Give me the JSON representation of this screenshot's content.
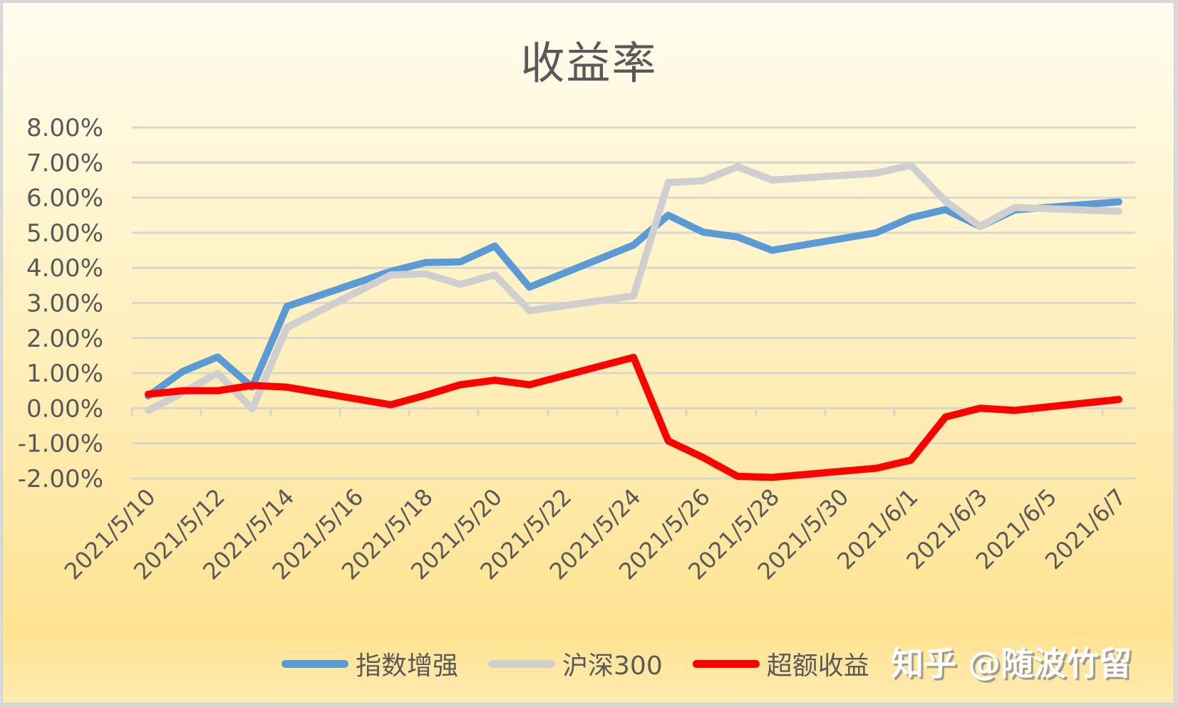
{
  "title": "收益率",
  "watermark": "知乎 @随波竹留",
  "legend": [
    {
      "label": "指数增强",
      "color": "#5b9bd5"
    },
    {
      "label": "沪深300",
      "color": "#cfcfcf"
    },
    {
      "label": "超额收益",
      "color": "#ff0000"
    }
  ],
  "y_ticks": [
    "8.00%",
    "7.00%",
    "6.00%",
    "5.00%",
    "4.00%",
    "3.00%",
    "2.00%",
    "1.00%",
    "0.00%",
    "-1.00%",
    "-2.00%"
  ],
  "x_ticks": [
    "2021/5/10",
    "2021/5/12",
    "2021/5/14",
    "2021/5/16",
    "2021/5/18",
    "2021/5/20",
    "2021/5/22",
    "2021/5/24",
    "2021/5/26",
    "2021/5/28",
    "2021/5/30",
    "2021/6/1",
    "2021/6/3",
    "2021/6/5",
    "2021/6/7"
  ],
  "chart_data": {
    "type": "line",
    "title": "收益率",
    "xlabel": "",
    "ylabel": "",
    "ylim": [
      -0.02,
      0.08
    ],
    "y_tick_format": "0.00%",
    "grid": true,
    "legend_position": "bottom",
    "x_axis_type": "date",
    "x": [
      "2021/5/10",
      "2021/5/11",
      "2021/5/12",
      "2021/5/13",
      "2021/5/14",
      "2021/5/17",
      "2021/5/18",
      "2021/5/19",
      "2021/5/20",
      "2021/5/21",
      "2021/5/24",
      "2021/5/25",
      "2021/5/26",
      "2021/5/27",
      "2021/5/28",
      "2021/5/31",
      "2021/6/1",
      "2021/6/2",
      "2021/6/3",
      "2021/6/4",
      "2021/6/7"
    ],
    "x_day_offsets": [
      0,
      1,
      2,
      3,
      4,
      7,
      8,
      9,
      10,
      11,
      14,
      15,
      16,
      17,
      18,
      21,
      22,
      23,
      24,
      25,
      28
    ],
    "series": [
      {
        "name": "指数增强",
        "color": "#5b9bd5",
        "values": [
          0.0035,
          0.0105,
          0.0146,
          0.006,
          0.029,
          0.039,
          0.0415,
          0.0417,
          0.0462,
          0.0345,
          0.0465,
          0.055,
          0.0502,
          0.0488,
          0.045,
          0.05,
          0.0543,
          0.0566,
          0.0518,
          0.0565,
          0.0588
        ]
      },
      {
        "name": "沪深300",
        "color": "#cfcfcf",
        "values": [
          -0.0006,
          0.0045,
          0.01,
          -0.0002,
          0.023,
          0.038,
          0.0383,
          0.0353,
          0.038,
          0.0278,
          0.032,
          0.0643,
          0.0648,
          0.0688,
          0.065,
          0.067,
          0.0692,
          0.059,
          0.0518,
          0.0572,
          0.0561
        ]
      },
      {
        "name": "超额收益",
        "color": "#ff0000",
        "values": [
          0.004,
          0.005,
          0.005,
          0.0065,
          0.006,
          0.001,
          0.0037,
          0.0067,
          0.008,
          0.0067,
          0.0145,
          -0.0093,
          -0.014,
          -0.0194,
          -0.0197,
          -0.0171,
          -0.0148,
          -0.0025,
          0.0,
          -0.0006,
          0.0025
        ]
      }
    ]
  }
}
